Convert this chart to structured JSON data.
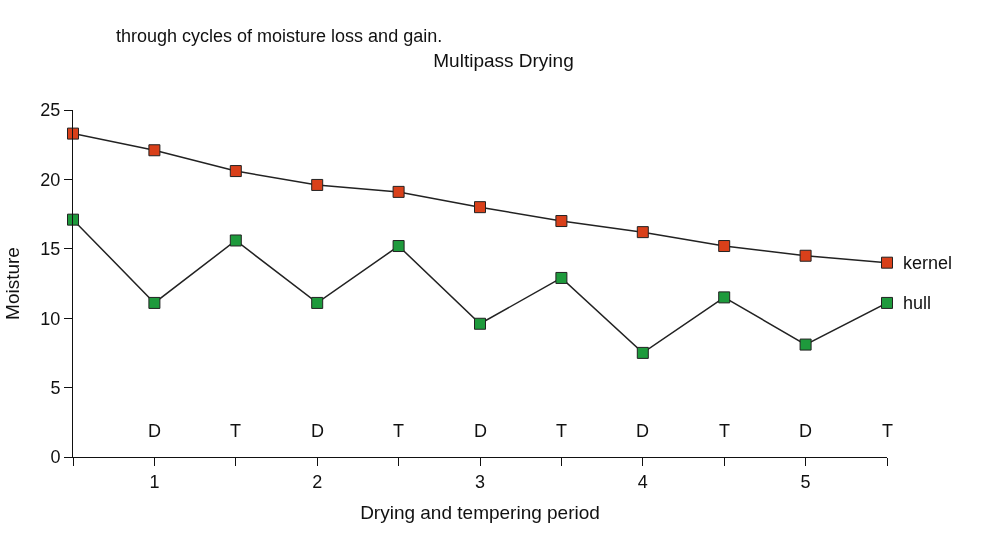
{
  "chart_data": {
    "type": "line",
    "title": "Multipass Drying",
    "xlabel": "Drying and tempering period",
    "ylabel": "Moisture",
    "x": [
      0.5,
      1,
      1.5,
      2,
      2.5,
      3,
      3.5,
      4,
      4.5,
      5,
      5.5
    ],
    "xlim": [
      0.5,
      5.5
    ],
    "xticks": [
      {
        "value": 0.5,
        "label": null
      },
      1,
      {
        "value": 1.5,
        "label": null
      },
      2,
      {
        "value": 2.5,
        "label": null
      },
      3,
      {
        "value": 3.5,
        "label": null
      },
      4,
      {
        "value": 4.5,
        "label": null
      },
      5,
      {
        "value": 5.5,
        "label": null
      }
    ],
    "ylim": [
      0,
      25
    ],
    "yticks": [
      0,
      5,
      10,
      15,
      20,
      25
    ],
    "series": [
      {
        "name": "kernel",
        "color": "#d9401a",
        "values": [
          23.3,
          22.1,
          20.6,
          19.6,
          19.1,
          18.0,
          17.0,
          16.2,
          15.2,
          14.5,
          14.0
        ]
      },
      {
        "name": "hull",
        "color": "#1e9a3c",
        "values": [
          17.1,
          11.1,
          15.6,
          11.1,
          15.2,
          9.6,
          12.9,
          7.5,
          11.5,
          8.1,
          11.1
        ]
      }
    ],
    "marker": "square",
    "legend": false,
    "annotations": [
      "through cycles of moisture loss and gain.",
      "D",
      "T",
      "D",
      "T",
      "D",
      "T",
      "D",
      "T",
      "D",
      "T"
    ]
  }
}
